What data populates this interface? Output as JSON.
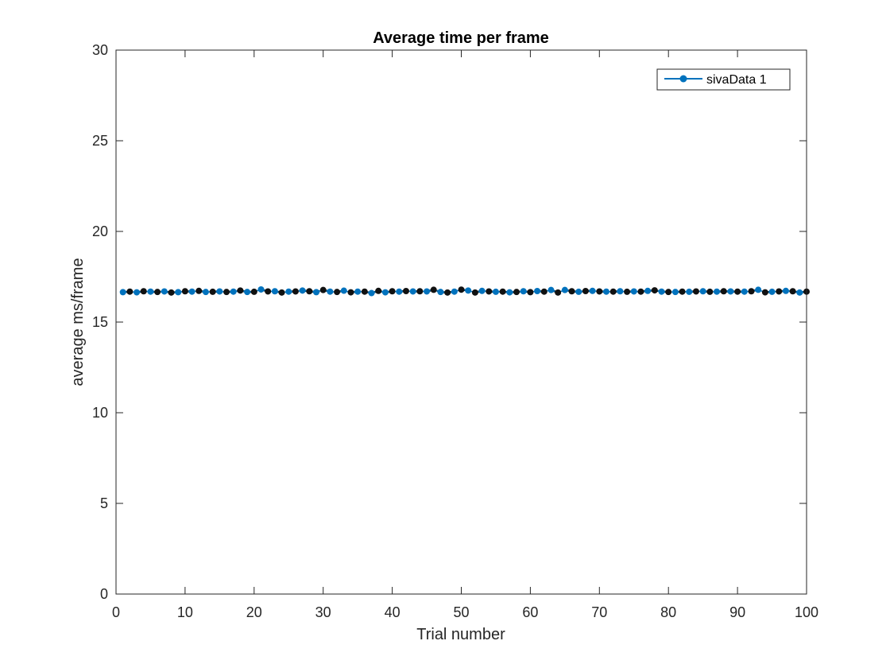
{
  "chart_data": {
    "type": "line",
    "title": "Average time per frame",
    "xlabel": "Trial number",
    "ylabel": "average ms/frame",
    "xlim": [
      0,
      100
    ],
    "ylim": [
      0,
      30
    ],
    "xticks": [
      0,
      10,
      20,
      30,
      40,
      50,
      60,
      70,
      80,
      90,
      100
    ],
    "yticks": [
      0,
      5,
      10,
      15,
      20,
      25,
      30
    ],
    "grid": false,
    "legend_position": "top-right",
    "series": [
      {
        "name": "sivaData 1",
        "color": "#0072BD",
        "marker": "circle",
        "x": [
          1,
          2,
          3,
          4,
          5,
          6,
          7,
          8,
          9,
          10,
          11,
          12,
          13,
          14,
          15,
          16,
          17,
          18,
          19,
          20,
          21,
          22,
          23,
          24,
          25,
          26,
          27,
          28,
          29,
          30,
          31,
          32,
          33,
          34,
          35,
          36,
          37,
          38,
          39,
          40,
          41,
          42,
          43,
          44,
          45,
          46,
          47,
          48,
          49,
          50,
          51,
          52,
          53,
          54,
          55,
          56,
          57,
          58,
          59,
          60,
          61,
          62,
          63,
          64,
          65,
          66,
          67,
          68,
          69,
          70,
          71,
          72,
          73,
          74,
          75,
          76,
          77,
          78,
          79,
          80,
          81,
          82,
          83,
          84,
          85,
          86,
          87,
          88,
          89,
          90,
          91,
          92,
          93,
          94,
          95,
          96,
          97,
          98,
          99,
          100
        ],
        "values": [
          16.65,
          16.68,
          16.64,
          16.7,
          16.68,
          16.66,
          16.69,
          16.63,
          16.65,
          16.7,
          16.68,
          16.72,
          16.66,
          16.67,
          16.69,
          16.66,
          16.68,
          16.74,
          16.66,
          16.67,
          16.8,
          16.69,
          16.7,
          16.63,
          16.68,
          16.69,
          16.74,
          16.7,
          16.65,
          16.77,
          16.68,
          16.66,
          16.73,
          16.64,
          16.68,
          16.68,
          16.6,
          16.72,
          16.64,
          16.7,
          16.68,
          16.71,
          16.69,
          16.7,
          16.69,
          16.78,
          16.66,
          16.63,
          16.68,
          16.79,
          16.74,
          16.63,
          16.72,
          16.69,
          16.67,
          16.68,
          16.64,
          16.66,
          16.7,
          16.65,
          16.71,
          16.68,
          16.77,
          16.63,
          16.77,
          16.7,
          16.67,
          16.71,
          16.72,
          16.69,
          16.68,
          16.68,
          16.7,
          16.67,
          16.69,
          16.68,
          16.72,
          16.75,
          16.68,
          16.66,
          16.66,
          16.68,
          16.67,
          16.69,
          16.7,
          16.67,
          16.68,
          16.7,
          16.69,
          16.68,
          16.68,
          16.7,
          16.78,
          16.64,
          16.67,
          16.69,
          16.72,
          16.7,
          16.63,
          16.68
        ]
      }
    ]
  }
}
